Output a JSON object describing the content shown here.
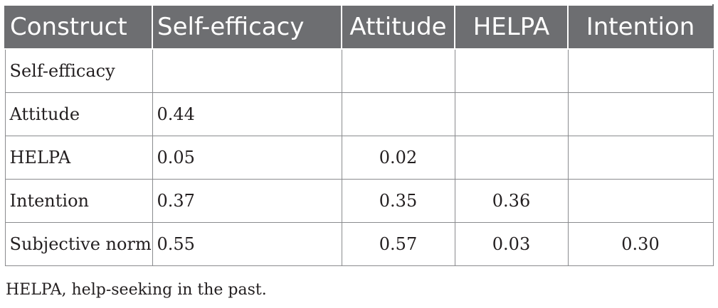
{
  "table": {
    "headers": [
      "Construct",
      "Self-efficacy",
      "Attitude",
      "HELPA",
      "Intention"
    ],
    "rows": [
      [
        "Self-efficacy",
        "",
        "",
        "",
        ""
      ],
      [
        "Attitude",
        "0.44",
        "",
        "",
        ""
      ],
      [
        "HELPA",
        "0.05",
        "0.02",
        "",
        ""
      ],
      [
        "Intention",
        "0.37",
        "0.35",
        "0.36",
        ""
      ],
      [
        "Subjective norm",
        "0.55",
        "0.57",
        "0.03",
        "0.30"
      ]
    ]
  },
  "footnote": "HELPA, help-seeking in the past.",
  "colors": {
    "header_bg": "#6d6e71",
    "header_text": "#ffffff",
    "border": "#8a8b8e",
    "body_text": "#231f20"
  }
}
